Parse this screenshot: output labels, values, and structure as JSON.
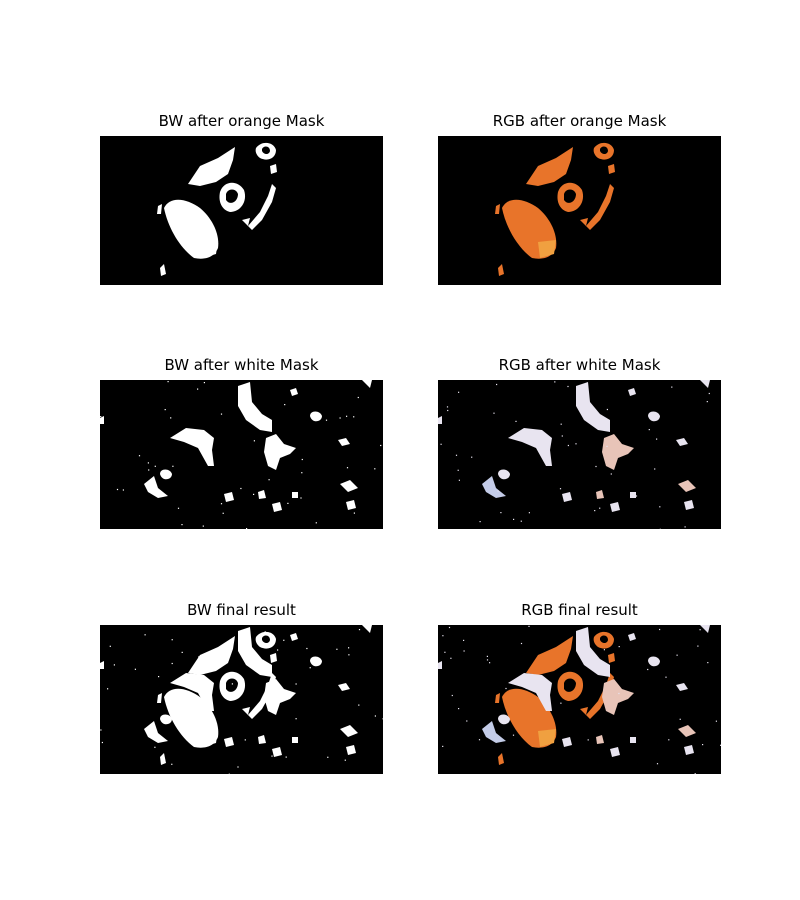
{
  "figure": {
    "panels": [
      {
        "id": "bw-orange",
        "title": "BW after orange Mask",
        "mode": "bw",
        "layers": [
          "orange"
        ]
      },
      {
        "id": "rgb-orange",
        "title": "RGB after orange Mask",
        "mode": "rgb",
        "layers": [
          "orange"
        ]
      },
      {
        "id": "bw-white",
        "title": "BW after white Mask",
        "mode": "bw",
        "layers": [
          "white"
        ]
      },
      {
        "id": "rgb-white",
        "title": "RGB after white Mask",
        "mode": "rgb",
        "layers": [
          "white"
        ]
      },
      {
        "id": "bw-final",
        "title": "BW final result",
        "mode": "bw",
        "layers": [
          "orange",
          "white"
        ]
      },
      {
        "id": "rgb-final",
        "title": "RGB final result",
        "mode": "rgb",
        "layers": [
          "orange",
          "white"
        ]
      }
    ]
  },
  "colors": {
    "background": "#000000",
    "mask_white": "#ffffff",
    "orange_main": "#e8742a",
    "orange_light": "#f0a040",
    "white_tint": "#e8e4f0",
    "pink_tint": "#e8c4b8",
    "blue_tint": "#c4cce8"
  }
}
